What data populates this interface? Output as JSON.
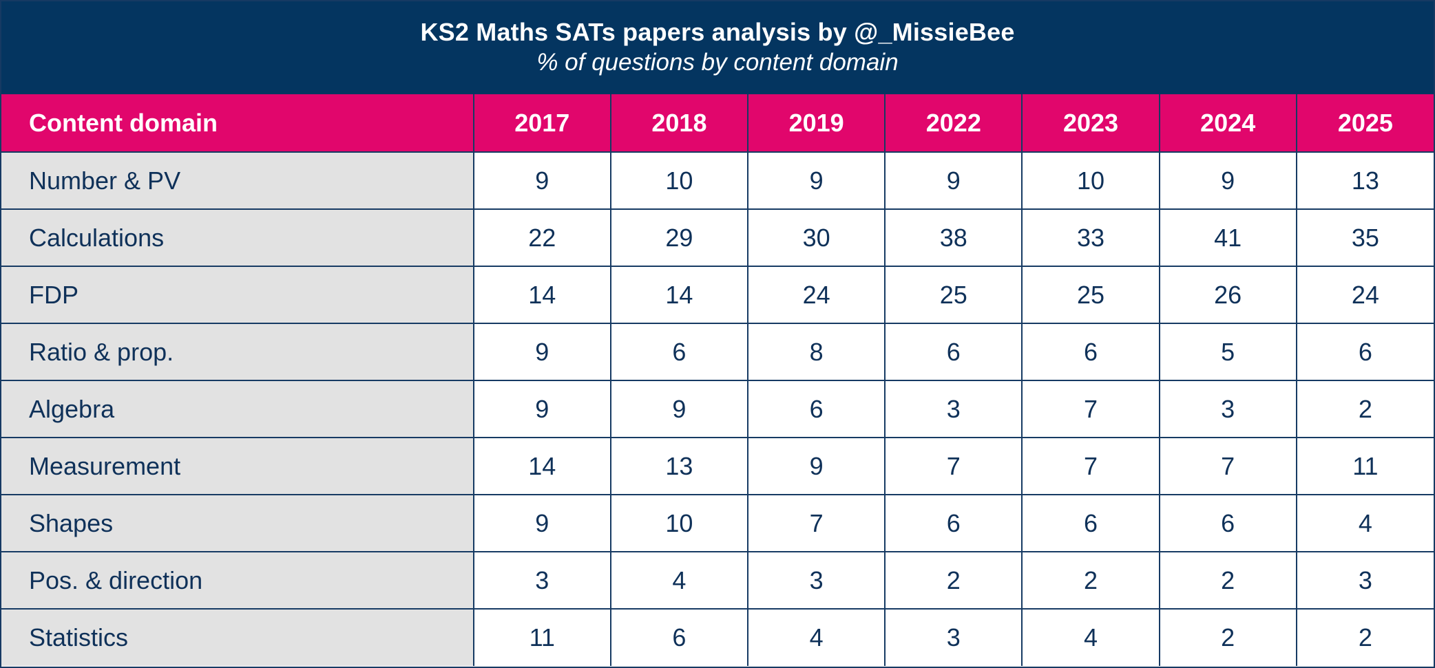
{
  "colors": {
    "title_bg": "#043560",
    "header_bg": "#e1066c",
    "domain_bg": "#e2e2e2",
    "text": "#0f3159",
    "border": "#163a63"
  },
  "chart_data": {
    "type": "table",
    "title": "KS2 Maths SATs papers analysis by @_MissieBee",
    "subtitle": "% of questions by content domain",
    "row_header_label": "Content domain",
    "columns": [
      "2017",
      "2018",
      "2019",
      "2022",
      "2023",
      "2024",
      "2025"
    ],
    "rows": [
      {
        "domain": "Number & PV",
        "values": [
          9,
          10,
          9,
          9,
          10,
          9,
          13
        ]
      },
      {
        "domain": "Calculations",
        "values": [
          22,
          29,
          30,
          38,
          33,
          41,
          35
        ]
      },
      {
        "domain": "FDP",
        "values": [
          14,
          14,
          24,
          25,
          25,
          26,
          24
        ]
      },
      {
        "domain": "Ratio & prop.",
        "values": [
          9,
          6,
          8,
          6,
          6,
          5,
          6
        ]
      },
      {
        "domain": "Algebra",
        "values": [
          9,
          9,
          6,
          3,
          7,
          3,
          2
        ]
      },
      {
        "domain": "Measurement",
        "values": [
          14,
          13,
          9,
          7,
          7,
          7,
          11
        ]
      },
      {
        "domain": "Shapes",
        "values": [
          9,
          10,
          7,
          6,
          6,
          6,
          4
        ]
      },
      {
        "domain": "Pos. & direction",
        "values": [
          3,
          4,
          3,
          2,
          2,
          2,
          3
        ]
      },
      {
        "domain": "Statistics",
        "values": [
          11,
          6,
          4,
          3,
          4,
          2,
          2
        ]
      }
    ]
  }
}
